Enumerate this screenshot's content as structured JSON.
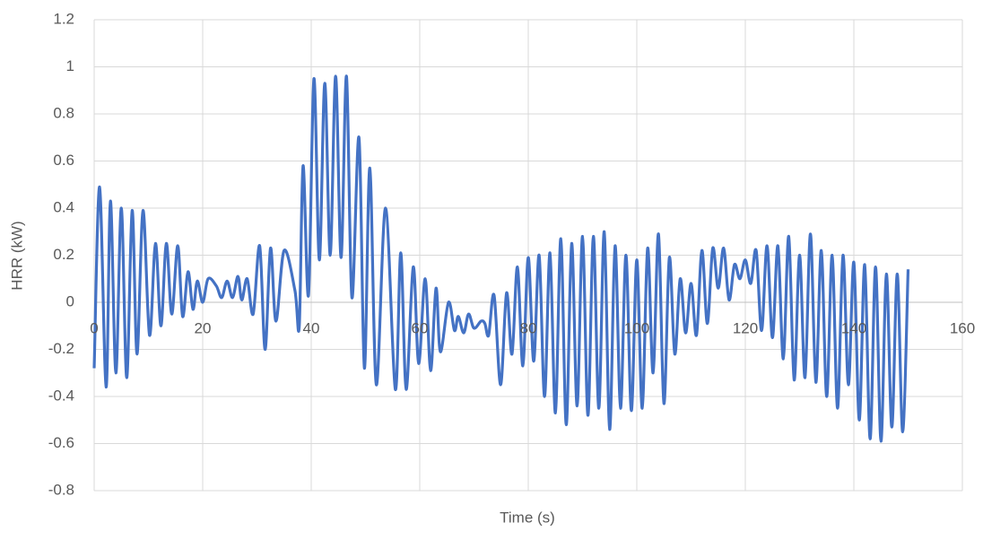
{
  "chart_data": {
    "type": "line",
    "x_label": "Time (s)",
    "y_label": "HRR (kW)",
    "x": [
      0,
      1,
      2.2,
      3,
      4,
      5,
      6,
      7,
      7.9,
      9,
      10.2,
      11.3,
      12.3,
      13.3,
      14.3,
      15.4,
      16.3,
      17.3,
      18.2,
      19,
      20,
      21,
      22.5,
      23.5,
      24.5,
      25.5,
      26.5,
      27.2,
      28.2,
      29.3,
      30.5,
      31.5,
      32.5,
      33.5,
      35,
      37,
      37.8,
      38.5,
      39.5,
      40.5,
      41.5,
      42.5,
      43.5,
      44.5,
      45.5,
      46.5,
      47.5,
      48.8,
      49.8,
      50.8,
      52,
      53.7,
      55.5,
      56.5,
      57.5,
      58.8,
      59.8,
      61,
      62,
      63,
      63.8,
      65.3,
      66.4,
      67.1,
      68.1,
      69,
      70,
      71.3,
      72,
      72.7,
      73.7,
      74.9,
      76,
      77,
      78,
      79,
      80,
      81,
      82,
      83,
      84,
      85,
      86,
      87,
      88,
      89,
      90,
      91,
      92,
      93,
      94,
      95,
      96,
      97,
      98,
      99,
      100,
      101,
      102,
      103,
      104,
      105,
      106,
      107,
      108,
      109,
      110,
      111,
      112,
      113,
      114,
      115,
      116,
      117,
      118,
      119,
      120,
      121,
      122,
      123,
      124,
      125,
      126,
      127,
      128,
      129,
      130,
      131,
      132,
      133,
      134,
      135,
      136,
      137,
      138,
      139,
      140,
      141,
      142,
      143,
      144,
      145,
      146,
      147,
      148,
      149,
      150
    ],
    "series": [
      {
        "name": "HRR",
        "color": "#4472c4",
        "values": [
          -0.28,
          0.49,
          -0.36,
          0.43,
          -0.3,
          0.4,
          -0.32,
          0.39,
          -0.22,
          0.39,
          -0.14,
          0.25,
          -0.1,
          0.25,
          -0.05,
          0.24,
          -0.06,
          0.13,
          -0.03,
          0.09,
          0.0,
          0.1,
          0.07,
          0.02,
          0.09,
          0.02,
          0.11,
          0.01,
          0.1,
          -0.05,
          0.24,
          -0.2,
          0.23,
          -0.08,
          0.22,
          0.05,
          -0.1,
          0.58,
          0.03,
          0.95,
          0.18,
          0.93,
          0.2,
          0.96,
          0.19,
          0.96,
          0.02,
          0.7,
          -0.28,
          0.57,
          -0.35,
          0.4,
          -0.37,
          0.21,
          -0.37,
          0.15,
          -0.26,
          0.1,
          -0.29,
          0.06,
          -0.21,
          0.0,
          -0.12,
          -0.06,
          -0.13,
          -0.05,
          -0.11,
          -0.08,
          -0.09,
          -0.14,
          0.03,
          -0.35,
          0.04,
          -0.22,
          0.15,
          -0.27,
          0.19,
          -0.25,
          0.2,
          -0.4,
          0.21,
          -0.47,
          0.27,
          -0.52,
          0.25,
          -0.44,
          0.28,
          -0.48,
          0.28,
          -0.45,
          0.3,
          -0.54,
          0.24,
          -0.45,
          0.2,
          -0.46,
          0.18,
          -0.45,
          0.23,
          -0.3,
          0.29,
          -0.43,
          0.19,
          -0.22,
          0.1,
          -0.13,
          0.08,
          -0.14,
          0.22,
          -0.09,
          0.23,
          0.06,
          0.23,
          0.01,
          0.16,
          0.1,
          0.18,
          0.08,
          0.22,
          -0.12,
          0.24,
          -0.15,
          0.24,
          -0.24,
          0.28,
          -0.33,
          0.2,
          -0.32,
          0.29,
          -0.34,
          0.22,
          -0.4,
          0.2,
          -0.45,
          0.2,
          -0.35,
          0.17,
          -0.5,
          0.16,
          -0.58,
          0.15,
          -0.59,
          0.12,
          -0.53,
          0.12,
          -0.55,
          0.14
        ]
      }
    ],
    "xlim": [
      0,
      160
    ],
    "xticks": [
      0,
      20,
      40,
      60,
      80,
      100,
      120,
      140,
      160
    ],
    "ylim": [
      -0.8,
      1.2
    ],
    "yticks": [
      -0.8,
      -0.6,
      -0.4,
      -0.2,
      0,
      0.2,
      0.4,
      0.6,
      0.8,
      1,
      1.2
    ],
    "grid": true
  }
}
